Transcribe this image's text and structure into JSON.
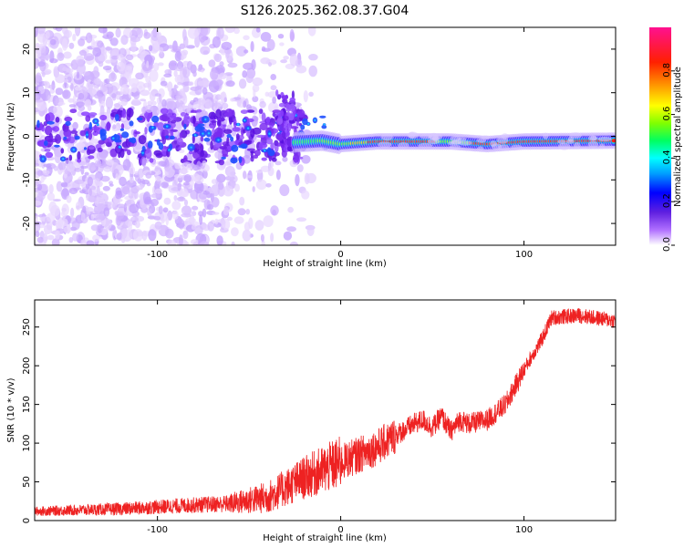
{
  "title": "S126.2025.362.08.37.G04",
  "chart_data": [
    {
      "type": "heatmap",
      "xlabel": "Height of straight line (km)",
      "ylabel": "Frequency (Hz)",
      "xlim": [
        -167,
        150
      ],
      "ylim": [
        -25,
        25
      ],
      "xticks": [
        -100,
        0,
        100
      ],
      "yticks": [
        -20,
        -10,
        0,
        10,
        20
      ],
      "colorbar": {
        "label": "Normalized spectral amplitude",
        "range": [
          0,
          1
        ],
        "ticks": [
          "0.0",
          "0.2",
          "0.4",
          "0.6",
          "0.8"
        ],
        "colors": [
          "#ffffff",
          "#a040ff",
          "#0000ff",
          "#00c8ff",
          "#00ff00",
          "#ffff00",
          "#ff8000",
          "#ff0000",
          "#ff0080"
        ]
      },
      "ridge": [
        {
          "x": -30,
          "f": -1.5
        },
        {
          "x": -10,
          "f": -1.0
        },
        {
          "x": 0,
          "f": -1.8
        },
        {
          "x": 20,
          "f": -1.2
        },
        {
          "x": 60,
          "f": -1.2
        },
        {
          "x": 80,
          "f": -1.8
        },
        {
          "x": 100,
          "f": -1.2
        },
        {
          "x": 150,
          "f": -1.0
        }
      ]
    },
    {
      "type": "line",
      "xlabel": "Height of straight line (km)",
      "ylabel": "SNR (10 * v/v)",
      "xlim": [
        -167,
        150
      ],
      "ylim": [
        0,
        285
      ],
      "xticks": [
        -100,
        0,
        100
      ],
      "yticks": [
        0,
        50,
        100,
        150,
        200,
        250
      ],
      "color": "#ee2222",
      "trend": [
        {
          "x": -167,
          "y": 12
        },
        {
          "x": -120,
          "y": 15
        },
        {
          "x": -80,
          "y": 20
        },
        {
          "x": -60,
          "y": 22
        },
        {
          "x": -40,
          "y": 30
        },
        {
          "x": -20,
          "y": 55
        },
        {
          "x": 0,
          "y": 75
        },
        {
          "x": 10,
          "y": 85
        },
        {
          "x": 20,
          "y": 95
        },
        {
          "x": 30,
          "y": 110
        },
        {
          "x": 40,
          "y": 125
        },
        {
          "x": 45,
          "y": 130
        },
        {
          "x": 50,
          "y": 120
        },
        {
          "x": 55,
          "y": 135
        },
        {
          "x": 60,
          "y": 115
        },
        {
          "x": 65,
          "y": 130
        },
        {
          "x": 70,
          "y": 125
        },
        {
          "x": 80,
          "y": 130
        },
        {
          "x": 90,
          "y": 150
        },
        {
          "x": 100,
          "y": 195
        },
        {
          "x": 110,
          "y": 235
        },
        {
          "x": 115,
          "y": 262
        },
        {
          "x": 130,
          "y": 265
        },
        {
          "x": 150,
          "y": 258
        }
      ]
    }
  ]
}
